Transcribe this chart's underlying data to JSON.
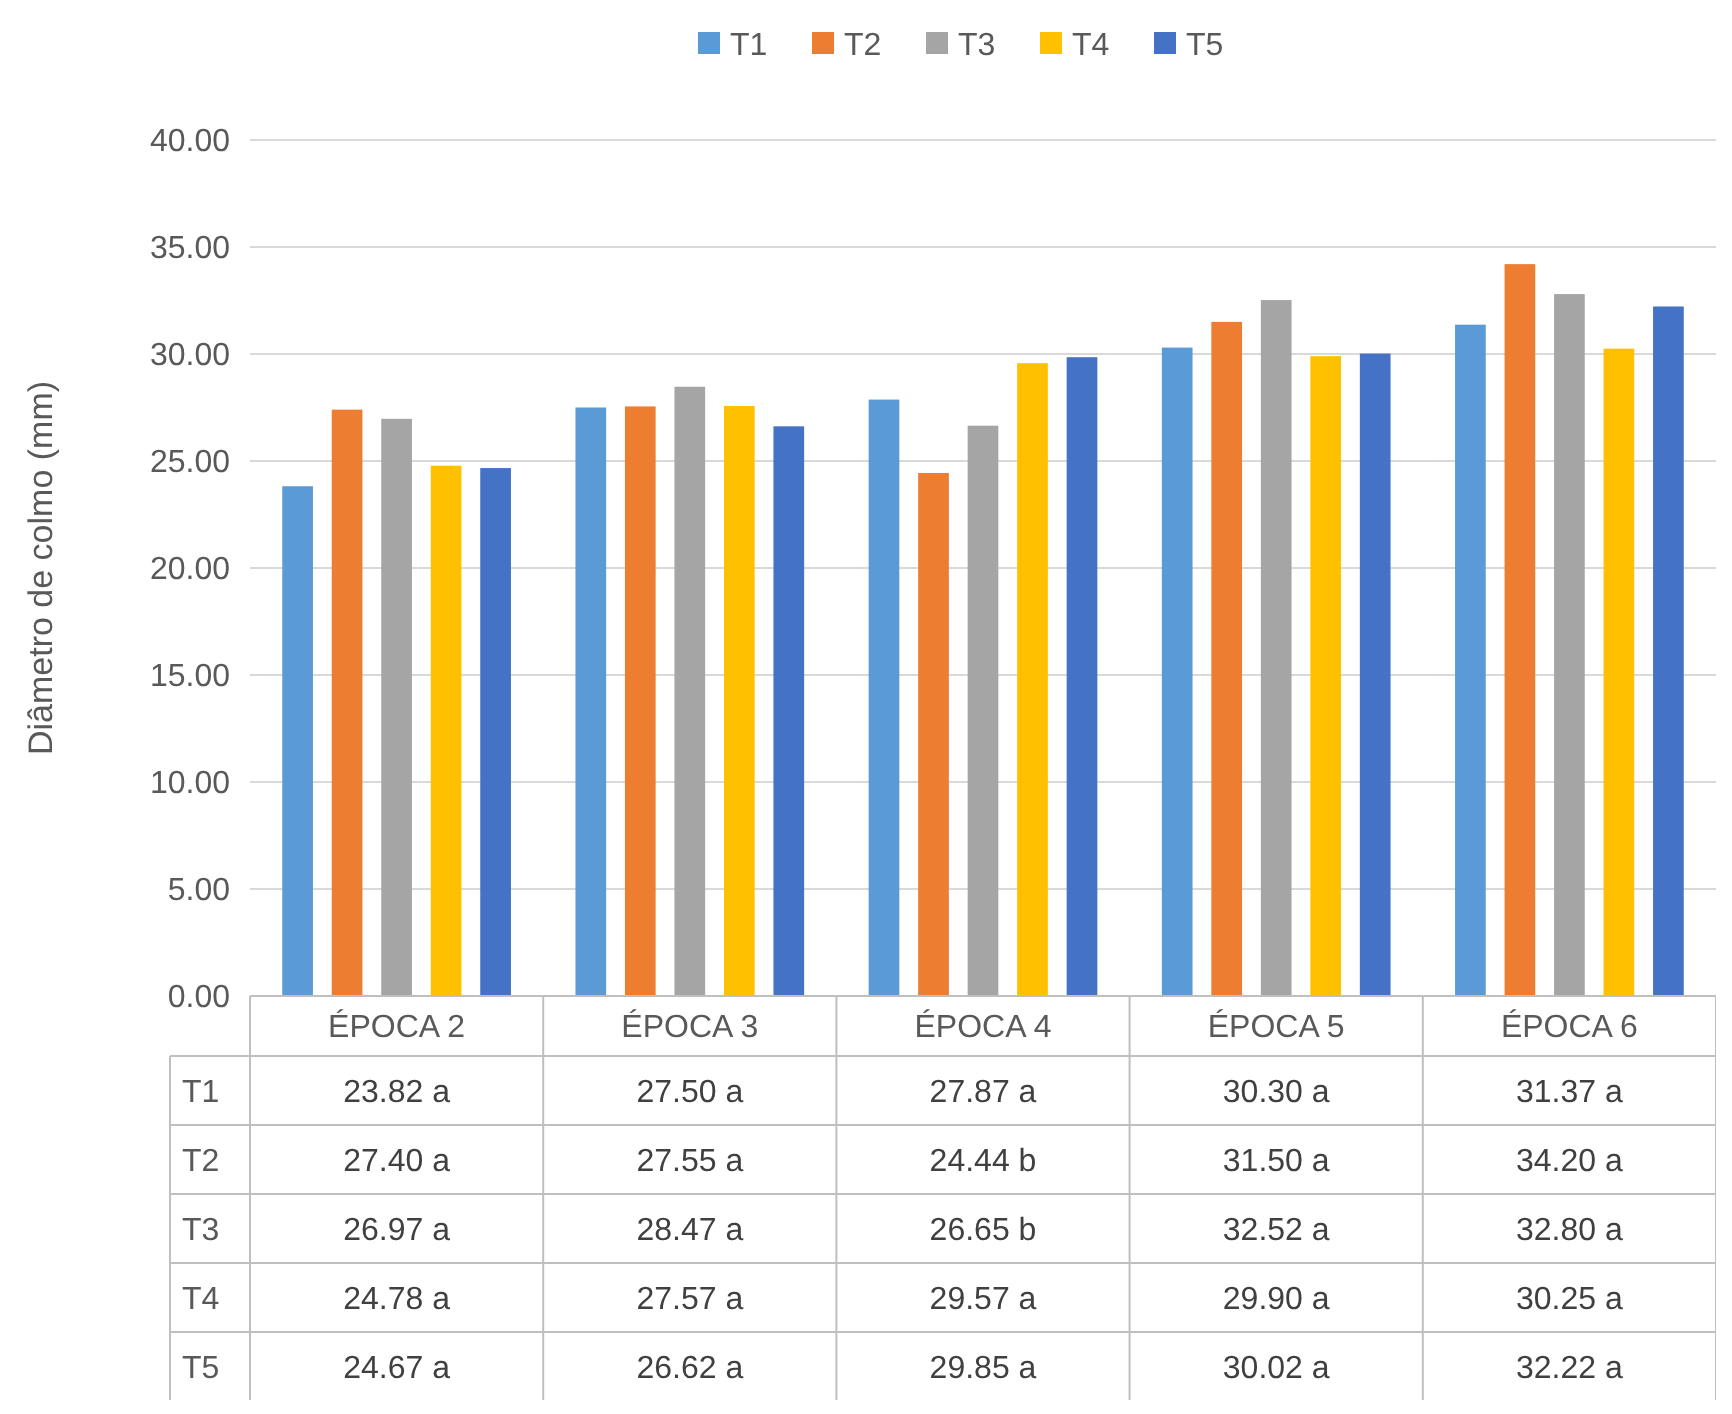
{
  "chart_data": {
    "type": "bar",
    "ylabel": "Diâmetro de colmo (mm)",
    "categories": [
      "ÉPOCA 2",
      "ÉPOCA 3",
      "ÉPOCA 4",
      "ÉPOCA 5",
      "ÉPOCA 6"
    ],
    "series": [
      {
        "name": "T1",
        "color": "#5b9bd5",
        "values": [
          23.82,
          27.5,
          27.87,
          30.3,
          31.37
        ],
        "value_labels": [
          "23.82 a",
          "27.50 a",
          "27.87 a",
          "30.30 a",
          "31.37 a"
        ]
      },
      {
        "name": "T2",
        "color": "#ed7d31",
        "values": [
          27.4,
          27.55,
          24.44,
          31.5,
          34.2
        ],
        "value_labels": [
          "27.40 a",
          "27.55 a",
          "24.44 b",
          "31.50 a",
          "34.20 a"
        ]
      },
      {
        "name": "T3",
        "color": "#a5a5a5",
        "values": [
          26.97,
          28.47,
          26.65,
          32.52,
          32.8
        ],
        "value_labels": [
          "26.97 a",
          "28.47 a",
          "26.65 b",
          "32.52 a",
          "32.80 a"
        ]
      },
      {
        "name": "T4",
        "color": "#ffc000",
        "values": [
          24.78,
          27.57,
          29.57,
          29.9,
          30.25
        ],
        "value_labels": [
          "24.78 a",
          "27.57 a",
          "29.57 a",
          "29.90 a",
          "30.25 a"
        ]
      },
      {
        "name": "T5",
        "color": "#4472c4",
        "values": [
          24.67,
          26.62,
          29.85,
          30.02,
          32.22
        ],
        "value_labels": [
          "24.67 a",
          "26.62 a",
          "29.85 a",
          "30.02 a",
          "32.22 a"
        ]
      }
    ],
    "ylim": [
      0,
      40
    ],
    "yticks": [
      {
        "value": 0,
        "label": "0.00"
      },
      {
        "value": 5,
        "label": "5.00"
      },
      {
        "value": 10,
        "label": "10.00"
      },
      {
        "value": 15,
        "label": "15.00"
      },
      {
        "value": 20,
        "label": "20.00"
      },
      {
        "value": 25,
        "label": "25.00"
      },
      {
        "value": 30,
        "label": "30.00"
      },
      {
        "value": 35,
        "label": "35.00"
      },
      {
        "value": 40,
        "label": "40.00"
      }
    ],
    "grid": "y",
    "legend": "top"
  }
}
